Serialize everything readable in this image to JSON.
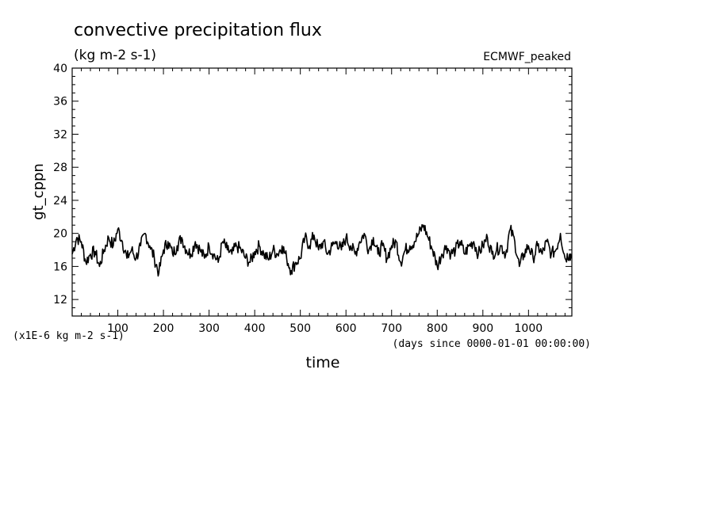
{
  "chart_data": {
    "type": "line",
    "title": "convective precipitation flux",
    "units": "(kg m-2 s-1)",
    "dataset_label": "ECMWF_peaked",
    "ylabel": "gt_cppn",
    "xlabel": "time",
    "x_units": "(days since 0000-01-01 00:00:00)",
    "y_scale_note": "(x1E-6 kg m-2 s-1)",
    "xlim": [
      0,
      1095
    ],
    "ylim": [
      10,
      40
    ],
    "x_ticks": [
      100,
      200,
      300,
      400,
      500,
      600,
      700,
      800,
      900,
      1000
    ],
    "y_ticks": [
      12,
      16,
      20,
      24,
      28,
      32,
      36,
      40
    ],
    "grid": false,
    "series": [
      {
        "x": [
          0,
          10,
          20,
          30,
          40,
          50,
          60,
          70,
          80,
          90,
          100,
          110,
          120,
          130,
          140,
          150,
          160,
          170,
          180,
          190,
          200,
          210,
          220,
          230,
          240,
          250,
          260,
          270,
          280,
          290,
          300,
          310,
          320,
          330,
          340,
          350,
          360,
          370,
          380,
          390,
          400,
          410,
          420,
          430,
          440,
          450,
          460,
          470,
          480,
          490,
          500,
          510,
          520,
          530,
          540,
          550,
          560,
          570,
          580,
          590,
          600,
          610,
          620,
          630,
          640,
          650,
          660,
          670,
          680,
          690,
          700,
          710,
          720,
          730,
          740,
          750,
          760,
          770,
          780,
          790,
          800,
          810,
          820,
          830,
          840,
          850,
          860,
          870,
          880,
          890,
          900,
          910,
          920,
          930,
          940,
          950,
          960,
          970,
          980,
          990,
          1000,
          1010,
          1020,
          1030,
          1040,
          1050,
          1060,
          1070,
          1080,
          1090,
          1095
        ],
        "y": [
          17.5,
          19.5,
          19.0,
          16.5,
          17.5,
          17.8,
          16.0,
          18.0,
          19.5,
          18.5,
          20.5,
          19.0,
          17.0,
          18.0,
          17.0,
          18.5,
          20.0,
          18.5,
          17.0,
          15.2,
          18.0,
          19.0,
          17.5,
          18.5,
          19.5,
          18.0,
          17.5,
          19.0,
          18.0,
          17.0,
          18.5,
          17.5,
          16.5,
          19.0,
          18.0,
          17.5,
          18.5,
          18.0,
          17.0,
          16.5,
          17.8,
          18.5,
          17.5,
          16.8,
          18.0,
          17.5,
          18.5,
          17.0,
          15.5,
          16.5,
          17.0,
          19.5,
          18.5,
          19.8,
          18.0,
          19.0,
          17.5,
          18.5,
          19.0,
          18.0,
          19.5,
          18.5,
          17.5,
          19.0,
          20.0,
          18.0,
          19.5,
          17.5,
          18.5,
          17.0,
          18.5,
          19.0,
          16.5,
          18.0,
          18.5,
          19.0,
          20.0,
          21.0,
          19.5,
          18.0,
          16.0,
          17.5,
          18.5,
          17.5,
          18.0,
          19.0,
          17.5,
          18.5,
          19.0,
          17.5,
          18.5,
          19.5,
          17.5,
          18.0,
          18.5,
          17.5,
          20.5,
          19.0,
          16.0,
          17.5,
          18.5,
          17.0,
          18.5,
          17.5,
          19.0,
          17.5,
          18.0,
          20.0,
          17.0,
          17.5,
          17.2
        ]
      }
    ]
  }
}
